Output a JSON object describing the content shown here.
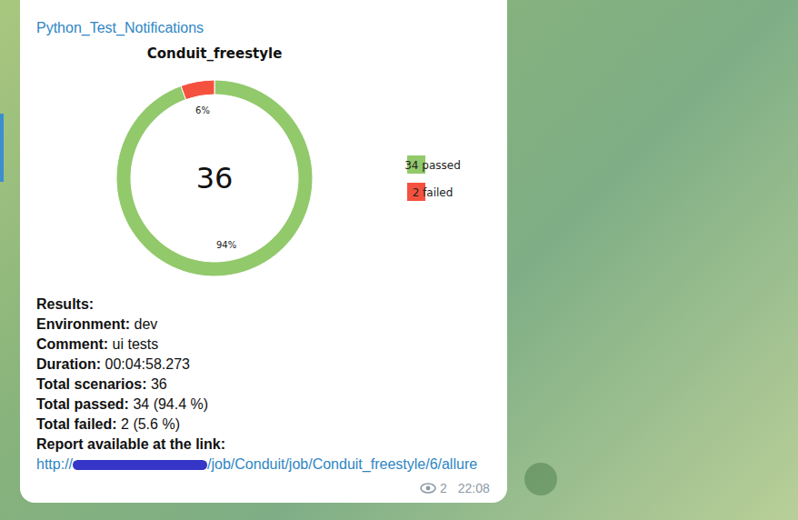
{
  "header": {
    "channel": "Python_Test_Notifications"
  },
  "chart_data": {
    "type": "donut",
    "title": "Conduit_freestyle",
    "categories": [
      "34 passed",
      "2 failed"
    ],
    "values": [
      34,
      2
    ],
    "colors": [
      "#92c96b",
      "#f5513f"
    ],
    "percent_labels": [
      "94%",
      "6%"
    ],
    "total": 36,
    "legend": "right"
  },
  "message": {
    "heading": "Results:",
    "fields": [
      {
        "label": "Environment:",
        "value": "dev"
      },
      {
        "label": "Comment:",
        "value": "ui tests"
      },
      {
        "label": "Duration:",
        "value": "00:04:58.273"
      },
      {
        "label": "Total scenarios:",
        "value": "36"
      },
      {
        "label": "Total passed:",
        "value": "34 (94.4 %)"
      },
      {
        "label": "Total failed:",
        "value": "2 (5.6 %)"
      }
    ],
    "link_label": "Report available at the link:",
    "link_prefix": "http://",
    "link_suffix": "/job/Conduit/job/Conduit_freestyle/6/allure"
  },
  "footer": {
    "views": 2,
    "time": "22:08"
  }
}
